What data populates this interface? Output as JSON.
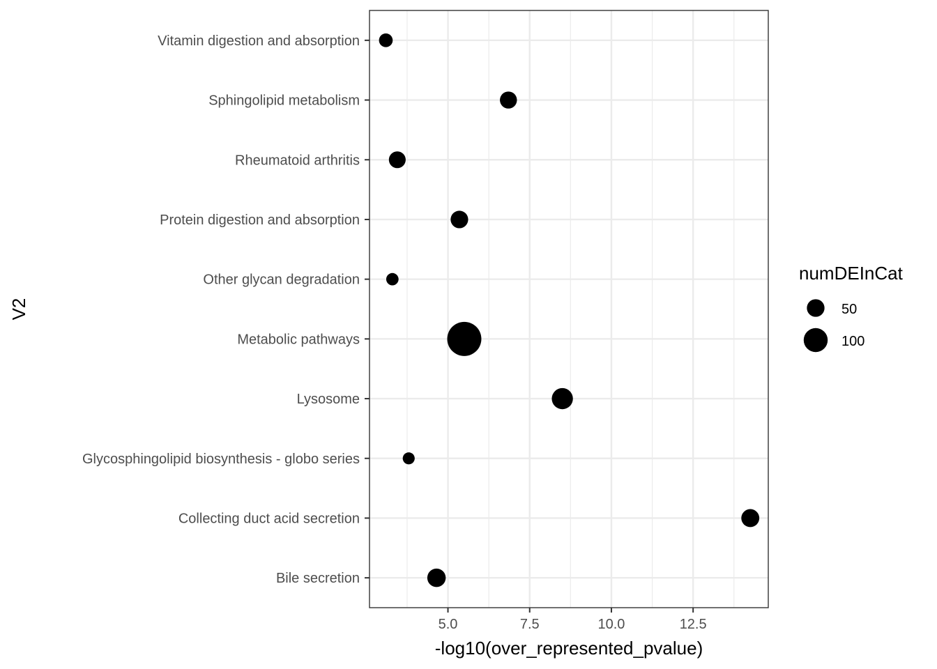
{
  "chart_data": {
    "type": "scatter",
    "xlabel": "-log10(over_represented_pvalue)",
    "ylabel": "V2",
    "xlim": [
      2.6,
      14.8
    ],
    "x_ticks": [
      5.0,
      7.5,
      10.0,
      12.5
    ],
    "x_tick_labels": [
      "5.0",
      "7.5",
      "10.0",
      "12.5"
    ],
    "categories": [
      "Bile secretion",
      "Collecting duct acid secretion",
      "Glycosphingolipid biosynthesis - globo series",
      "Lysosome",
      "Metabolic pathways",
      "Other glycan degradation",
      "Protein digestion and absorption",
      "Rheumatoid arthritis",
      "Sphingolipid metabolism",
      "Vitamin digestion and absorption"
    ],
    "points": [
      {
        "category": "Bile secretion",
        "x": 4.65,
        "size": 35
      },
      {
        "category": "Collecting duct acid secretion",
        "x": 14.25,
        "size": 33
      },
      {
        "category": "Glycosphingolipid biosynthesis - globo series",
        "x": 3.8,
        "size": 12
      },
      {
        "category": "Lysosome",
        "x": 8.5,
        "size": 48
      },
      {
        "category": "Metabolic pathways",
        "x": 5.5,
        "size": 140
      },
      {
        "category": "Other glycan degradation",
        "x": 3.3,
        "size": 13
      },
      {
        "category": "Protein digestion and absorption",
        "x": 5.35,
        "size": 31
      },
      {
        "category": "Rheumatoid arthritis",
        "x": 3.45,
        "size": 28
      },
      {
        "category": "Sphingolipid metabolism",
        "x": 6.85,
        "size": 29
      },
      {
        "category": "Vitamin digestion and absorption",
        "x": 3.1,
        "size": 17
      }
    ],
    "legend": {
      "title": "numDEInCat",
      "position": "right",
      "entries": [
        {
          "label": "50",
          "size": 50
        },
        {
          "label": "100",
          "size": 100
        }
      ]
    },
    "grid": true,
    "colors": {
      "point": "#000000",
      "grid": "#ebebeb",
      "panel_border": "#333333"
    }
  }
}
